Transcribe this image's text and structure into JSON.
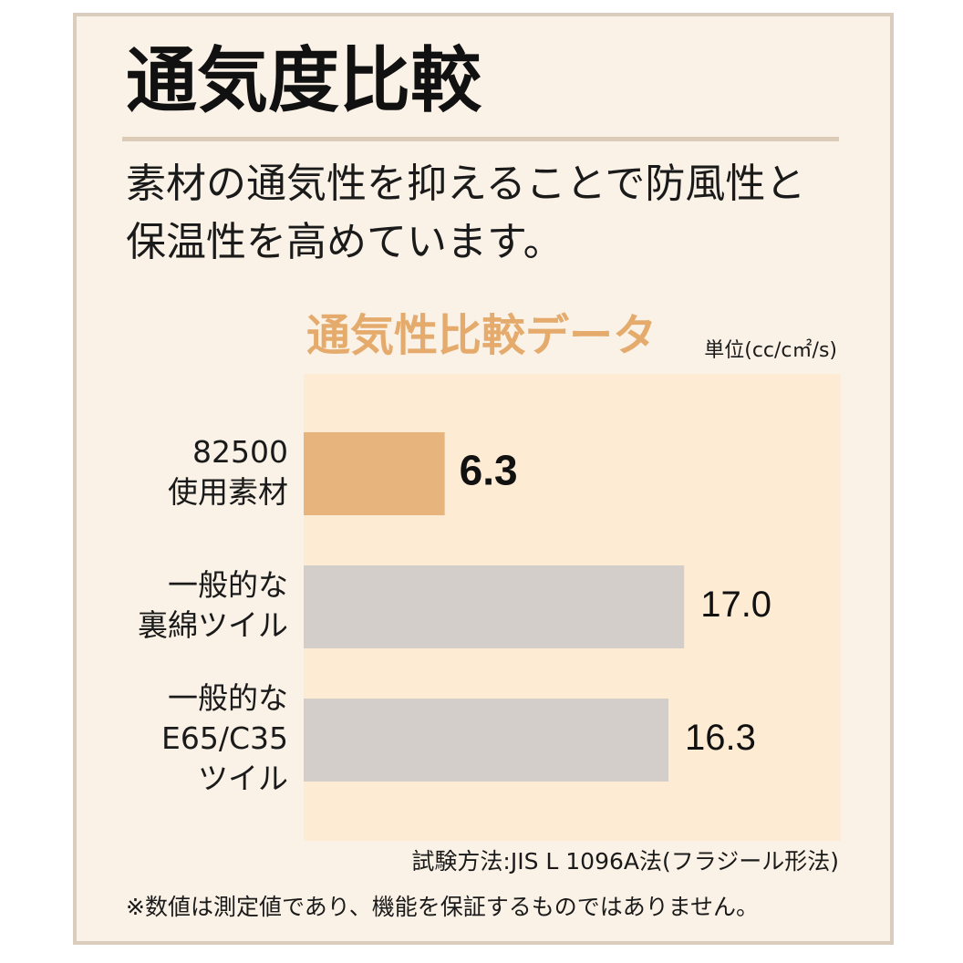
{
  "heading": {
    "title": "通気度比較",
    "lead_line_1": "素材の通気性を抑えることで防風性と",
    "lead_line_2": "保温性を高めています。"
  },
  "chart_data": {
    "type": "bar",
    "orientation": "horizontal",
    "title": "通気性比較データ",
    "unit": "単位(cc/c㎡/s)",
    "categories": [
      [
        "82500",
        "使用素材"
      ],
      [
        "一般的な",
        "裏綿ツイル"
      ],
      [
        "一般的な",
        "E65/C35",
        "ツイル"
      ]
    ],
    "values": [
      6.3,
      17.0,
      16.3
    ],
    "value_labels": [
      "6.3",
      "17.0",
      "16.3"
    ],
    "xlim": [
      0,
      24
    ],
    "highlight_index": 0,
    "grid": false,
    "legend": "none",
    "colors": {
      "highlight_bar": "#e6b47c",
      "bar": "#d4ceca",
      "plot_background": "#fdebd3"
    }
  },
  "footer": {
    "method": "試験方法:JIS L 1096A法(フラジール形法)",
    "note": "※数値は測定値であり、機能を保証するものではありません。"
  },
  "colors": {
    "frame_border": "#dbcdbd",
    "frame_background": "#fbf2e7",
    "title_rule": "#dccbb6",
    "chart_title": "#e4ab6d"
  }
}
